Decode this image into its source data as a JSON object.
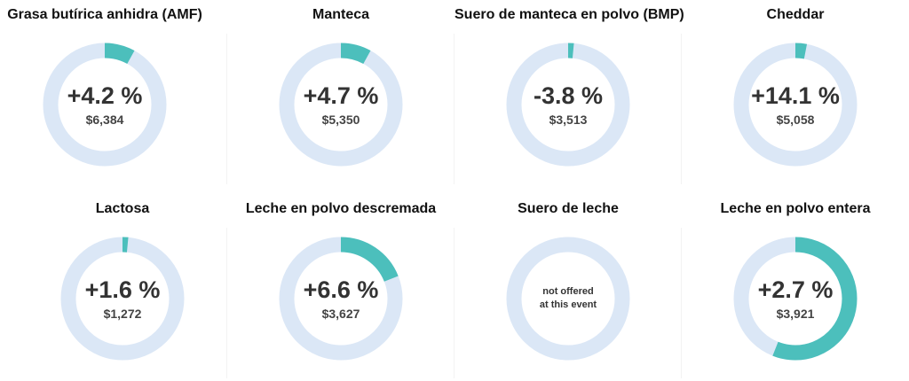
{
  "colors": {
    "track": "#dbe7f6",
    "fill": "#4cbfbc"
  },
  "chart_data": [
    {
      "type": "pie",
      "title": "Grasa butírica anhidra (AMF)",
      "change": "+4.2 %",
      "price": "$6,384",
      "fraction": 0.08,
      "note": ""
    },
    {
      "type": "pie",
      "title": "Manteca",
      "change": "+4.7 %",
      "price": "$5,350",
      "fraction": 0.08,
      "note": ""
    },
    {
      "type": "pie",
      "title": "Suero de manteca en polvo (BMP)",
      "change": "-3.8 %",
      "price": "$3,513",
      "fraction": 0.015,
      "note": ""
    },
    {
      "type": "pie",
      "title": "Cheddar",
      "change": "+14.1 %",
      "price": "$5,058",
      "fraction": 0.03,
      "note": ""
    },
    {
      "type": "pie",
      "title": "Lactosa",
      "change": "+1.6 %",
      "price": "$1,272",
      "fraction": 0.015,
      "note": ""
    },
    {
      "type": "pie",
      "title": "Leche en polvo descremada",
      "change": "+6.6 %",
      "price": "$3,627",
      "fraction": 0.19,
      "note": ""
    },
    {
      "type": "pie",
      "title": "Suero de leche",
      "change": "",
      "price": "",
      "fraction": 0,
      "note": "not offered\nat this event"
    },
    {
      "type": "pie",
      "title": "Leche en polvo entera",
      "change": "+2.7 %",
      "price": "$3,921",
      "fraction": 0.56,
      "note": ""
    }
  ]
}
